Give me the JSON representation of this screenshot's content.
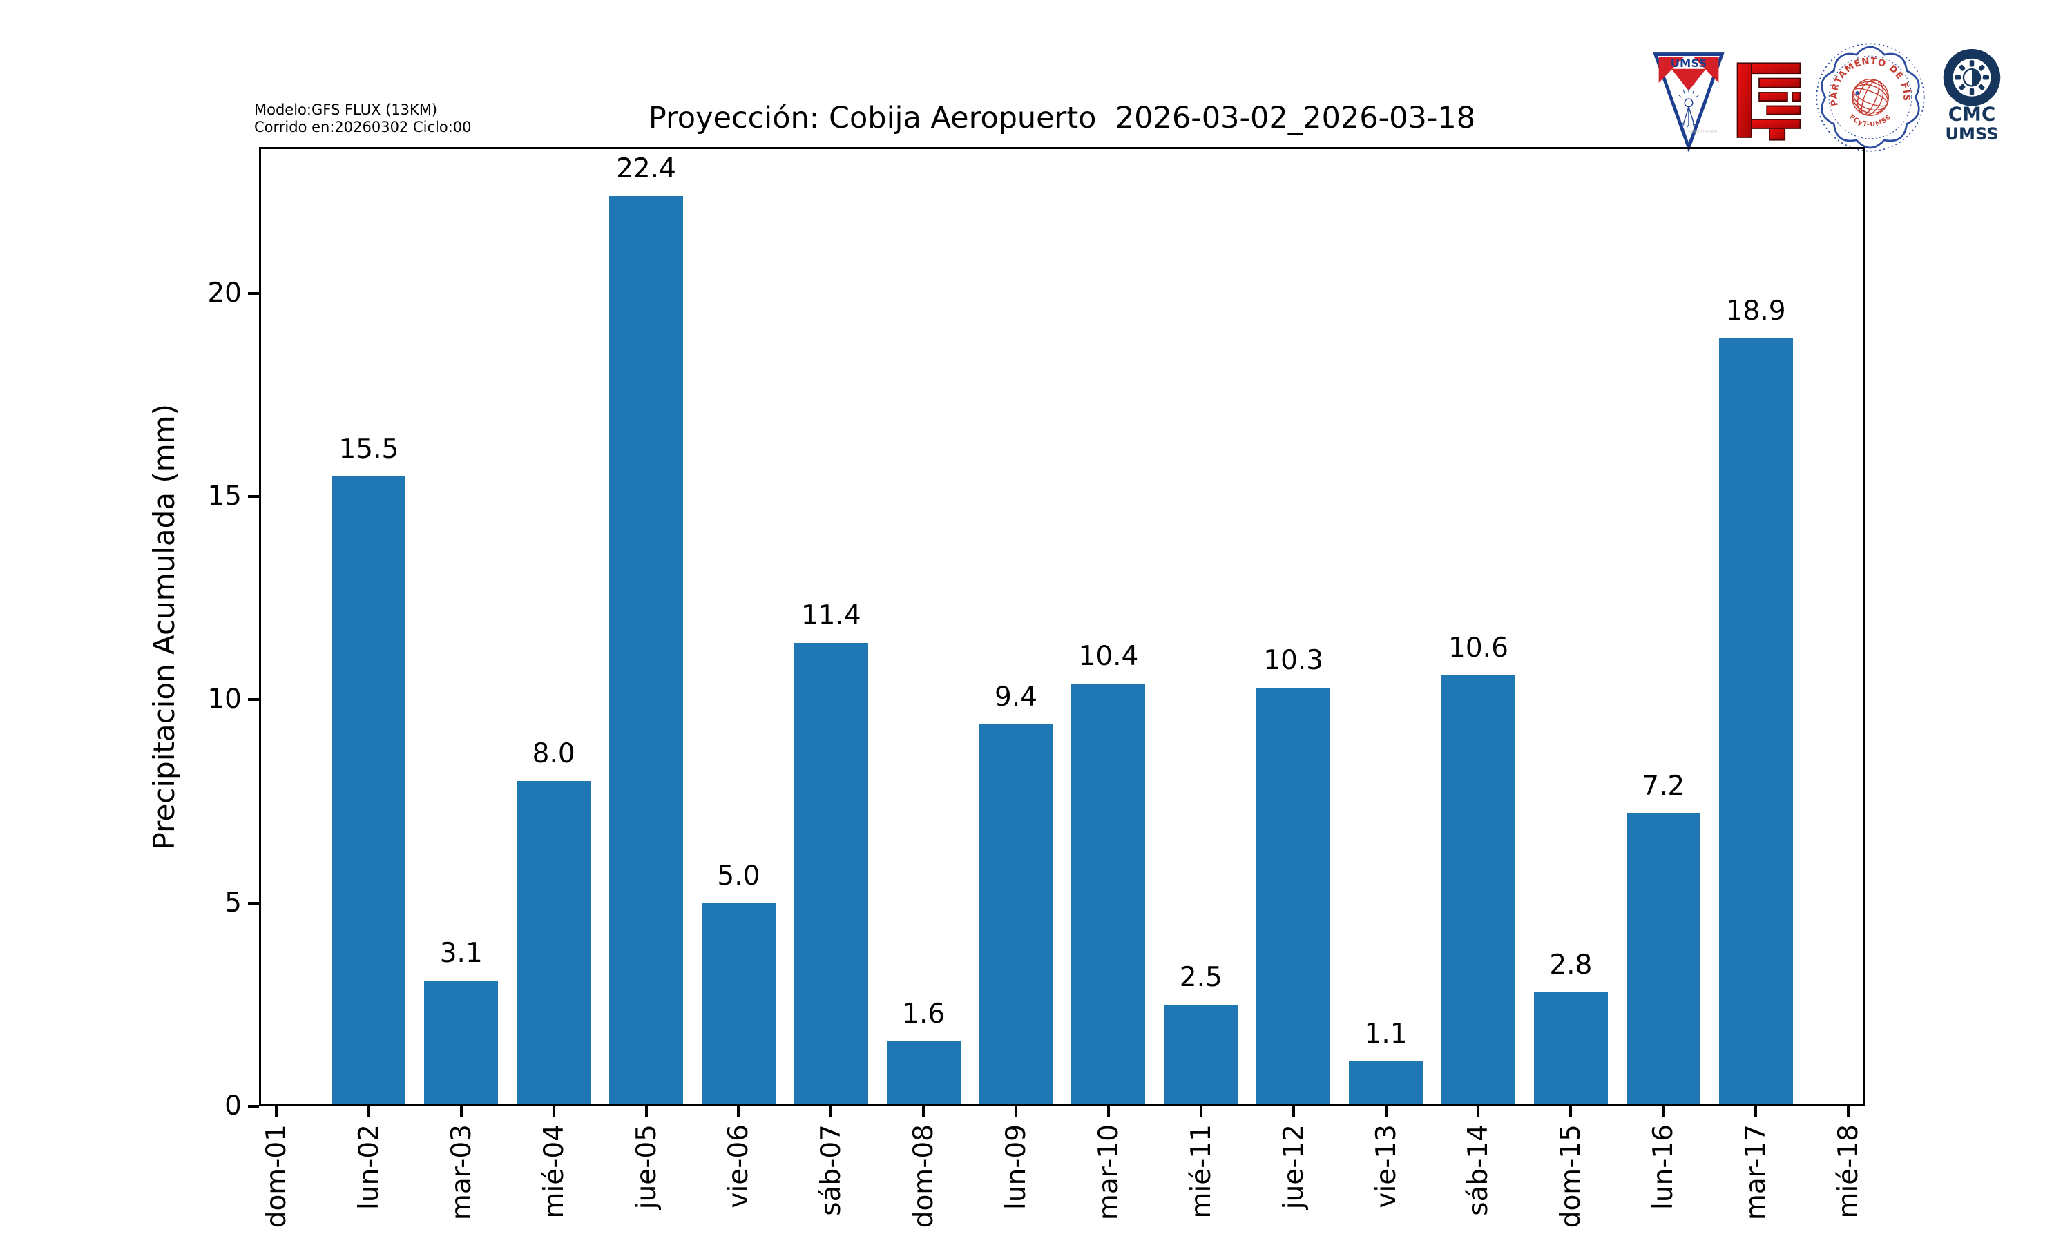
{
  "header": {
    "model_line1": "Modelo:GFS FLUX (13KM)",
    "model_line2": "Corrido en:20260302 Ciclo:00"
  },
  "logos": {
    "umss": {
      "label": "UMSS",
      "watermark": "creadictivo.com"
    },
    "fisica": {
      "arc_text": "DEPARTAMENTO DE FÍSICA",
      "bottom_text": "FCyT-UMSS"
    },
    "cmc": {
      "line1": "CMC",
      "line2": "UMSS"
    }
  },
  "chart_data": {
    "type": "bar",
    "title": "Proyección: Cobija Aeropuerto  2026-03-02_2026-03-18",
    "xlabel": "",
    "ylabel": "Precipitacion Acumulada (mm)",
    "categories": [
      "dom-01",
      "lun-02",
      "mar-03",
      "mié-04",
      "jue-05",
      "vie-06",
      "sáb-07",
      "dom-08",
      "lun-09",
      "mar-10",
      "mié-11",
      "jue-12",
      "vie-13",
      "sáb-14",
      "dom-15",
      "lun-16",
      "mar-17",
      "mié-18"
    ],
    "values": [
      0.0,
      15.5,
      3.1,
      8.0,
      22.4,
      5.0,
      11.4,
      1.6,
      9.4,
      10.4,
      2.5,
      10.3,
      1.1,
      10.6,
      2.8,
      7.2,
      18.9,
      0.0
    ],
    "bar_color": "#1f77b4",
    "ylim": [
      0,
      23.6
    ],
    "yticks": [
      0,
      5,
      10,
      15,
      20
    ],
    "grid": false,
    "legend": null
  }
}
